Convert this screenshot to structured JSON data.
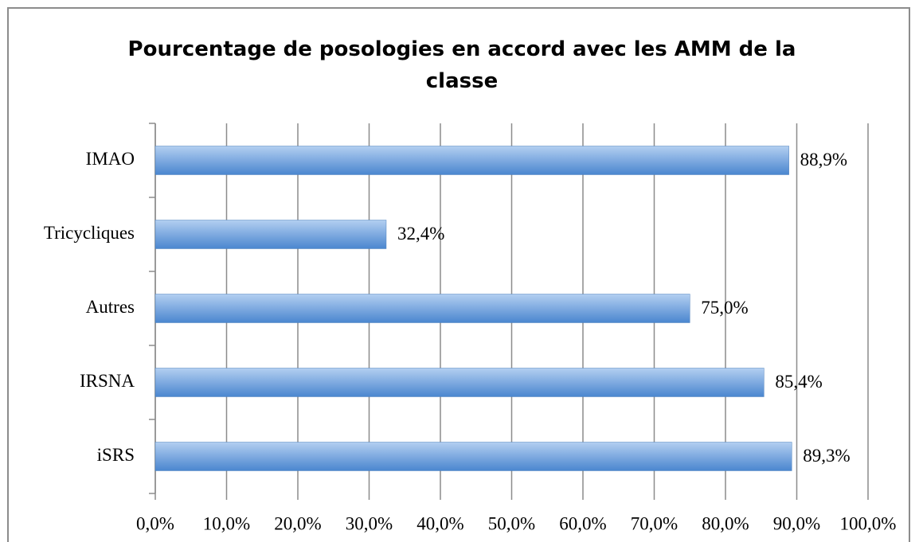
{
  "chart_data": {
    "type": "barh",
    "title": "Pourcentage de posologies en accord avec les AMM de la classe",
    "categories": [
      "IMAO",
      "Tricycliques",
      "Autres",
      "IRSNA",
      "iSRS"
    ],
    "values": [
      88.9,
      32.4,
      75.0,
      85.4,
      89.3
    ],
    "value_labels": [
      "88,9%",
      "32,4%",
      "75,0%",
      "85,4%",
      "89,3%"
    ],
    "color": "#4f81bd",
    "xlim": [
      0,
      100
    ],
    "xticks": [
      {
        "value": 0,
        "label": "0,0%"
      },
      {
        "value": 10,
        "label": "10,0%"
      },
      {
        "value": 20,
        "label": "20,0%"
      },
      {
        "value": 30,
        "label": "30,0%"
      },
      {
        "value": 40,
        "label": "40,0%"
      },
      {
        "value": 50,
        "label": "50,0%"
      },
      {
        "value": 60,
        "label": "60,0%"
      },
      {
        "value": 70,
        "label": "70,0%"
      },
      {
        "value": 80,
        "label": "80,0%"
      },
      {
        "value": 90,
        "label": "90,0%"
      },
      {
        "value": 100,
        "label": "100,0%"
      }
    ],
    "grid": true
  }
}
